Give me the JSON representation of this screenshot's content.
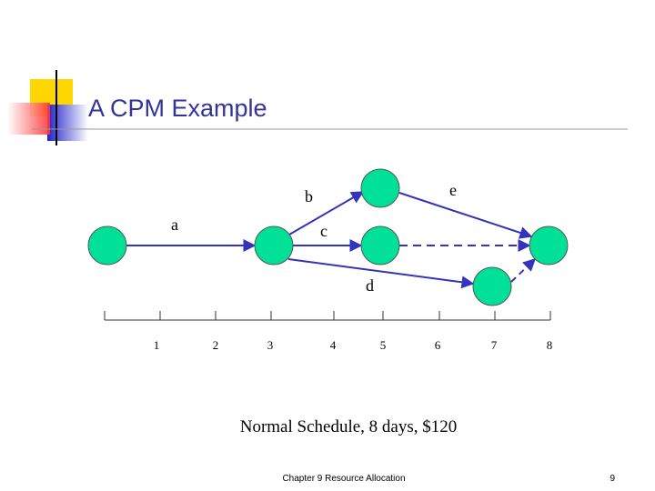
{
  "header": {
    "title": "A CPM Example"
  },
  "edges": [
    {
      "label": "a"
    },
    {
      "label": "b"
    },
    {
      "label": "c"
    },
    {
      "label": "d"
    },
    {
      "label": "e"
    }
  ],
  "timeline": {
    "labels": [
      "1",
      "2",
      "3",
      "4",
      "5",
      "6",
      "7",
      "8"
    ]
  },
  "caption": "Normal Schedule, 8 days, $120",
  "footer": {
    "text": "Chapter 9 Resource Allocation",
    "page": "9"
  }
}
